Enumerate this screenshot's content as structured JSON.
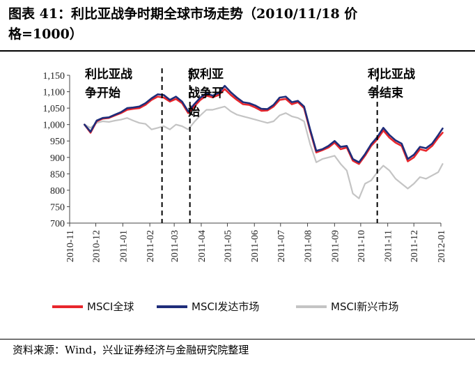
{
  "title": {
    "line1": "图表 41：利比亚战争时期全球市场走势（2010/11/18 价",
    "line2": "格=1000）"
  },
  "source": "资料来源：Wind，兴业证券经济与金融研究院整理",
  "chart_data": {
    "type": "line",
    "ylim": [
      700,
      1150
    ],
    "yticks": [
      700,
      750,
      800,
      850,
      900,
      950,
      1000,
      1050,
      1100,
      1150
    ],
    "ytick_labels": [
      "700",
      "750",
      "800",
      "850",
      "900",
      "950",
      "1,000",
      "1,050",
      "1,100",
      "1,150"
    ],
    "x_tick_labels": [
      "2010-11",
      "2010-12",
      "2011-01",
      "2011-02",
      "2011-03",
      "2011-04",
      "2011-05",
      "2011-06",
      "2011-07",
      "2011-08",
      "2011-09",
      "2011-10",
      "2011-11",
      "2011-12",
      "2012-01"
    ],
    "x": [
      "2010-11-18",
      "2010-11-25",
      "2010-12-02",
      "2010-12-09",
      "2010-12-16",
      "2010-12-23",
      "2010-12-30",
      "2011-01-06",
      "2011-01-13",
      "2011-01-20",
      "2011-01-27",
      "2011-02-03",
      "2011-02-10",
      "2011-02-17",
      "2011-02-24",
      "2011-03-03",
      "2011-03-10",
      "2011-03-17",
      "2011-03-24",
      "2011-03-31",
      "2011-04-07",
      "2011-04-14",
      "2011-04-21",
      "2011-04-28",
      "2011-05-05",
      "2011-05-12",
      "2011-05-19",
      "2011-05-26",
      "2011-06-02",
      "2011-06-09",
      "2011-06-16",
      "2011-06-23",
      "2011-06-30",
      "2011-07-07",
      "2011-07-14",
      "2011-07-21",
      "2011-07-28",
      "2011-08-04",
      "2011-08-11",
      "2011-08-18",
      "2011-08-25",
      "2011-09-01",
      "2011-09-08",
      "2011-09-15",
      "2011-09-22",
      "2011-09-29",
      "2011-10-06",
      "2011-10-13",
      "2011-10-20",
      "2011-10-27",
      "2011-11-03",
      "2011-11-10",
      "2011-11-17",
      "2011-11-24",
      "2011-12-01",
      "2011-12-08",
      "2011-12-15",
      "2011-12-22",
      "2011-12-29",
      "2012-01-03"
    ],
    "series": [
      {
        "name": "MSCI全球",
        "color": "#e8262c",
        "values": [
          1000,
          975,
          1010,
          1018,
          1020,
          1028,
          1035,
          1045,
          1048,
          1050,
          1060,
          1075,
          1085,
          1082,
          1070,
          1078,
          1065,
          1035,
          1055,
          1075,
          1088,
          1083,
          1090,
          1108,
          1090,
          1075,
          1062,
          1060,
          1052,
          1042,
          1043,
          1055,
          1075,
          1078,
          1062,
          1068,
          1050,
          980,
          915,
          922,
          930,
          945,
          925,
          930,
          890,
          880,
          905,
          935,
          955,
          982,
          960,
          945,
          935,
          888,
          900,
          925,
          920,
          935,
          960,
          975
        ]
      },
      {
        "name": "MSCI发达市场",
        "color": "#1f2d7a",
        "values": [
          1000,
          978,
          1012,
          1020,
          1022,
          1030,
          1038,
          1050,
          1052,
          1055,
          1065,
          1080,
          1092,
          1090,
          1075,
          1085,
          1070,
          1040,
          1062,
          1082,
          1095,
          1088,
          1096,
          1118,
          1098,
          1082,
          1068,
          1065,
          1058,
          1048,
          1047,
          1060,
          1082,
          1085,
          1068,
          1072,
          1055,
          985,
          920,
          925,
          935,
          950,
          932,
          935,
          895,
          885,
          910,
          940,
          962,
          990,
          968,
          952,
          942,
          895,
          908,
          932,
          928,
          942,
          968,
          988
        ]
      },
      {
        "name": "MSCI新兴市场",
        "color": "#c4c4c4",
        "values": [
          1000,
          990,
          1005,
          1010,
          1008,
          1012,
          1015,
          1020,
          1012,
          1005,
          1002,
          985,
          990,
          995,
          985,
          1000,
          995,
          985,
          1008,
          1028,
          1045,
          1045,
          1050,
          1055,
          1040,
          1030,
          1025,
          1020,
          1015,
          1010,
          1005,
          1010,
          1028,
          1035,
          1025,
          1020,
          1010,
          940,
          885,
          895,
          900,
          905,
          880,
          860,
          790,
          775,
          820,
          830,
          855,
          875,
          860,
          835,
          820,
          805,
          820,
          840,
          835,
          845,
          855,
          880
        ]
      }
    ],
    "event_lines": [
      {
        "date": "2011-02-15",
        "label_lines": [
          "利比亚战",
          "争开始"
        ]
      },
      {
        "date": "2011-03-19",
        "label_lines": [
          "叙利亚",
          "战争开",
          "始"
        ]
      },
      {
        "date": "2011-10-20",
        "label_lines": [
          "利比亚战",
          "争结束"
        ]
      }
    ],
    "legend_position": "bottom"
  }
}
